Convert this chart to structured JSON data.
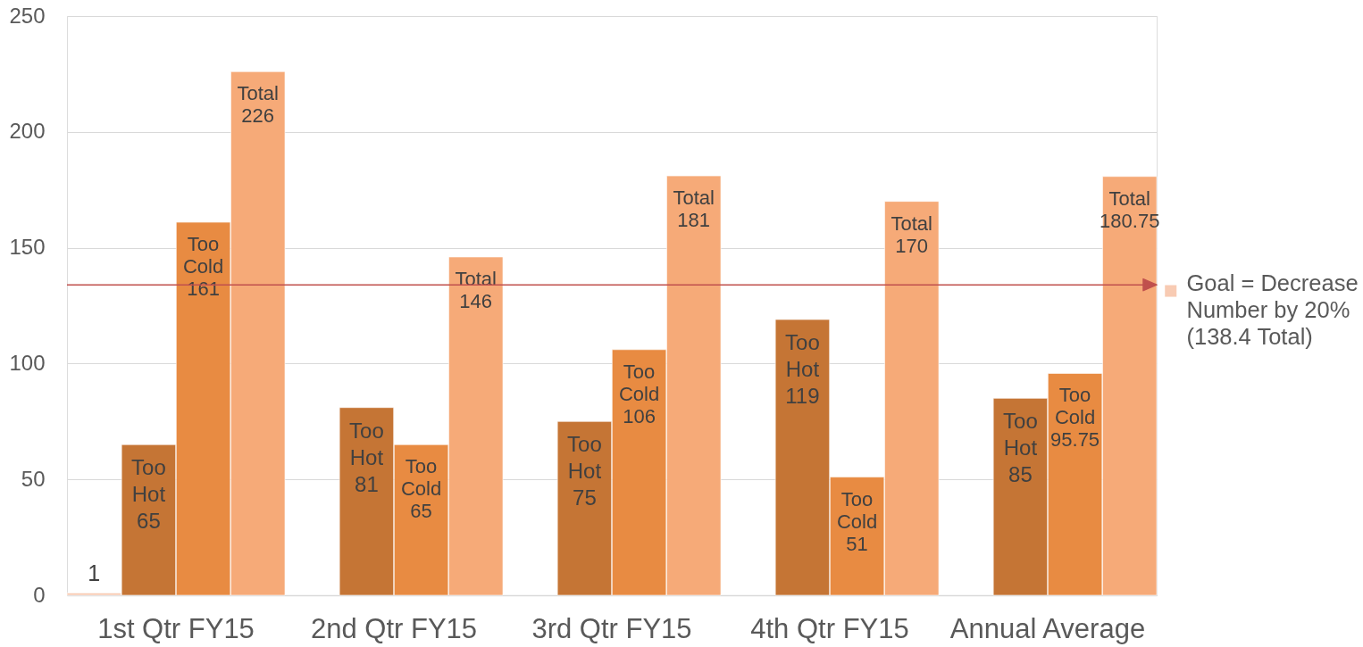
{
  "chart_data": {
    "type": "bar",
    "categories": [
      "1st Qtr FY15",
      "2nd Qtr FY15",
      "3rd Qtr FY15",
      "4th Qtr FY15",
      "Annual Average"
    ],
    "series": [
      {
        "name": "Goal = Decrease Number by 20% (138.4 Total)",
        "color": "#f8cbb3",
        "values": [
          1,
          null,
          null,
          null,
          null
        ],
        "value_labels": [
          "1",
          null,
          null,
          null,
          null
        ]
      },
      {
        "color": "#c57535",
        "values": [
          65,
          81,
          75,
          119,
          85
        ],
        "value_labels": [
          "Too Hot 65",
          "Too Hot 81",
          "Too Hot 75",
          "Too Hot 119",
          "Too Hot 85"
        ]
      },
      {
        "color": "#e88b42",
        "values": [
          161,
          65,
          106,
          51,
          95.75
        ],
        "value_labels": [
          "Too Cold 161",
          "Too Cold 65",
          "Too Cold 106",
          "Too Cold 51",
          "Too Cold 95.75"
        ]
      },
      {
        "color": "#f6aa78",
        "values": [
          226,
          146,
          181,
          170,
          180.75
        ],
        "value_labels": [
          "Total 226",
          "Total 146",
          "Total 181",
          "Total 170",
          "Total 180.75"
        ]
      }
    ],
    "ylim": [
      0,
      250
    ],
    "yticks": [
      0,
      50,
      100,
      150,
      200,
      250
    ],
    "grid": "y",
    "legend": "right",
    "ref_lines": [
      {
        "axis": "y",
        "value": 134,
        "color": "#c0504d"
      }
    ]
  }
}
